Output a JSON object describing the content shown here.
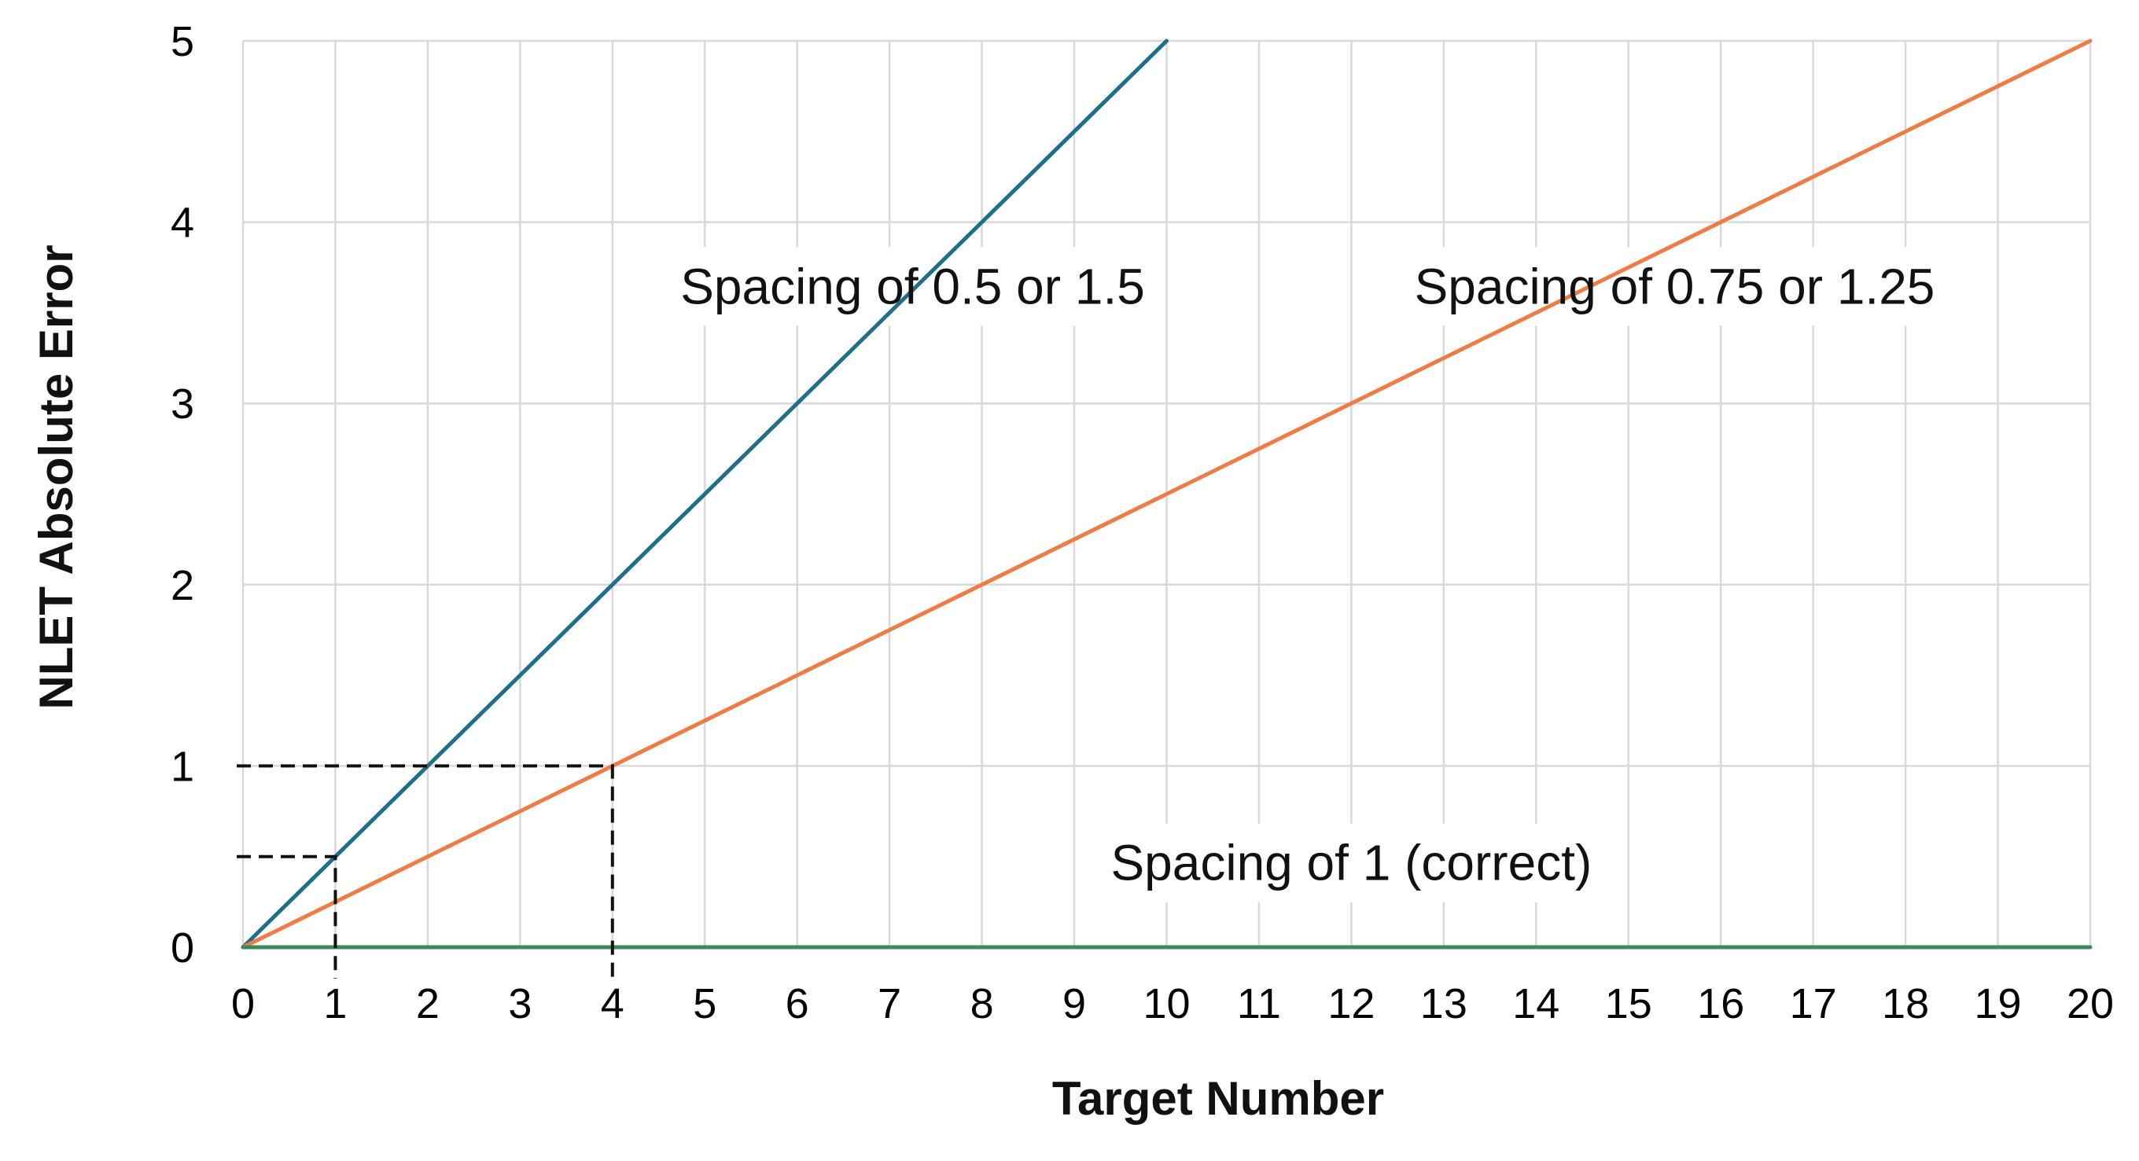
{
  "chart_data": {
    "type": "line",
    "xlabel": "Target Number",
    "ylabel": "NLET Absolute Error",
    "xlim": [
      0,
      20
    ],
    "ylim": [
      0,
      5
    ],
    "x_ticks": [
      0,
      1,
      2,
      3,
      4,
      5,
      6,
      7,
      8,
      9,
      10,
      11,
      12,
      13,
      14,
      15,
      16,
      17,
      18,
      19,
      20
    ],
    "y_ticks": [
      0,
      1,
      2,
      3,
      4,
      5
    ],
    "grid": true,
    "series": [
      {
        "key": "steep",
        "color": "#1f6e8c",
        "x": [
          0,
          10
        ],
        "y": [
          0,
          5
        ]
      },
      {
        "key": "shallow",
        "color": "#f07c45",
        "x": [
          0,
          20
        ],
        "y": [
          0,
          5
        ]
      },
      {
        "key": "flat",
        "color": "#3a8a5a",
        "x": [
          0,
          20
        ],
        "y": [
          0,
          0
        ]
      }
    ],
    "annotations": [
      {
        "key": "a1",
        "text": "Spacing of 0.5 or 1.5",
        "x": 7.25,
        "y": 3.55
      },
      {
        "key": "a2",
        "text": "Spacing of 0.75 or 1.25",
        "x": 15.5,
        "y": 3.55
      },
      {
        "key": "a3",
        "text": "Spacing of 1 (correct)",
        "x": 12.0,
        "y": 0.37
      }
    ],
    "reference_lines": [
      {
        "key": "r1",
        "x": 4,
        "y": 1
      },
      {
        "key": "r2",
        "x": 1,
        "y": 0.5
      }
    ]
  }
}
